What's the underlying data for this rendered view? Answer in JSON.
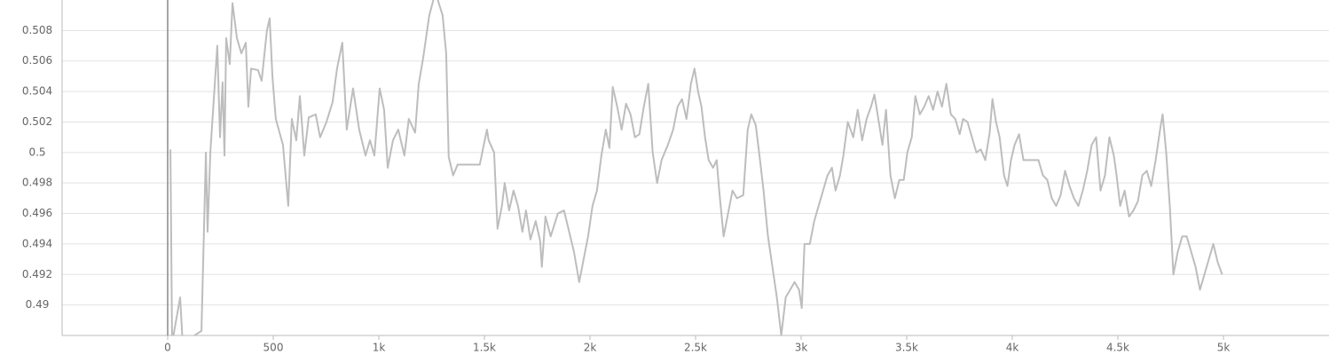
{
  "chart_data": {
    "type": "line",
    "x": [
      13,
      21,
      59,
      71,
      160,
      181,
      189,
      202,
      218,
      235,
      248,
      260,
      269,
      277,
      294,
      307,
      328,
      349,
      370,
      382,
      395,
      428,
      445,
      470,
      483,
      496,
      512,
      546,
      571,
      588,
      609,
      626,
      647,
      668,
      701,
      722,
      752,
      781,
      802,
      827,
      848,
      878,
      907,
      937,
      958,
      979,
      1004,
      1025,
      1042,
      1067,
      1092,
      1121,
      1142,
      1172,
      1189,
      1210,
      1239,
      1268,
      1302,
      1319,
      1331,
      1352,
      1373,
      1478,
      1512,
      1520,
      1546,
      1562,
      1583,
      1596,
      1617,
      1638,
      1659,
      1680,
      1697,
      1718,
      1743,
      1764,
      1772,
      1789,
      1814,
      1848,
      1877,
      1898,
      1924,
      1949,
      1970,
      1991,
      2012,
      2033,
      2054,
      2075,
      2092,
      2108,
      2129,
      2150,
      2171,
      2192,
      2213,
      2234,
      2255,
      2276,
      2297,
      2318,
      2339,
      2369,
      2394,
      2415,
      2436,
      2457,
      2478,
      2495,
      2512,
      2528,
      2545,
      2562,
      2583,
      2600,
      2612,
      2633,
      2654,
      2675,
      2696,
      2726,
      2747,
      2764,
      2785,
      2801,
      2822,
      2843,
      2864,
      2885,
      2906,
      2927,
      2948,
      2969,
      2990,
      3003,
      3016,
      3041,
      3062,
      3083,
      3104,
      3125,
      3146,
      3163,
      3184,
      3200,
      3221,
      3247,
      3268,
      3289,
      3310,
      3331,
      3347,
      3368,
      3385,
      3402,
      3423,
      3444,
      3465,
      3486,
      3503,
      3524,
      3541,
      3562,
      3583,
      3604,
      3625,
      3646,
      3667,
      3688,
      3709,
      3730,
      3751,
      3767,
      3788,
      3809,
      3830,
      3851,
      3872,
      3893,
      3906,
      3923,
      3940,
      3961,
      3977,
      3994,
      4011,
      4032,
      4053,
      4082,
      4124,
      4145,
      4166,
      4187,
      4208,
      4229,
      4250,
      4271,
      4292,
      4313,
      4334,
      4355,
      4376,
      4397,
      4418,
      4439,
      4460,
      4481,
      4494,
      4511,
      4532,
      4553,
      4574,
      4595,
      4616,
      4637,
      4658,
      4679,
      4700,
      4712,
      4729,
      4746,
      4763,
      4784,
      4805,
      4826,
      4847,
      4868,
      4889,
      4910,
      4931,
      4952,
      4973,
      4994
    ],
    "series": [
      {
        "color": "#bdbdbd",
        "values": [
          0.5002,
          0.4875,
          0.4905,
          0.4875,
          0.4883,
          0.5,
          0.4948,
          0.5,
          0.5034,
          0.507,
          0.501,
          0.5046,
          0.4998,
          0.5075,
          0.5058,
          0.5098,
          0.5075,
          0.5065,
          0.5072,
          0.503,
          0.5055,
          0.5054,
          0.5047,
          0.508,
          0.5088,
          0.505,
          0.5022,
          0.5005,
          0.4965,
          0.5022,
          0.5008,
          0.5037,
          0.4998,
          0.5023,
          0.5025,
          0.501,
          0.502,
          0.5033,
          0.5055,
          0.5072,
          0.5015,
          0.5042,
          0.5015,
          0.4998,
          0.5008,
          0.4998,
          0.5042,
          0.5028,
          0.499,
          0.5008,
          0.5015,
          0.4998,
          0.5022,
          0.5013,
          0.5045,
          0.5062,
          0.509,
          0.5105,
          0.509,
          0.5065,
          0.4997,
          0.4985,
          0.4992,
          0.4992,
          0.5015,
          0.5008,
          0.5,
          0.495,
          0.4965,
          0.498,
          0.4962,
          0.4975,
          0.4965,
          0.4948,
          0.4962,
          0.4943,
          0.4955,
          0.4942,
          0.4925,
          0.4958,
          0.4945,
          0.496,
          0.4962,
          0.495,
          0.4935,
          0.4915,
          0.493,
          0.4945,
          0.4965,
          0.4975,
          0.4998,
          0.5015,
          0.5003,
          0.5043,
          0.503,
          0.5015,
          0.5032,
          0.5025,
          0.501,
          0.5012,
          0.503,
          0.5045,
          0.5,
          0.498,
          0.4995,
          0.5005,
          0.5015,
          0.503,
          0.5035,
          0.5022,
          0.5045,
          0.5055,
          0.504,
          0.503,
          0.501,
          0.4995,
          0.499,
          0.4995,
          0.4975,
          0.4945,
          0.496,
          0.4975,
          0.497,
          0.4972,
          0.5015,
          0.5025,
          0.5018,
          0.5,
          0.4975,
          0.4945,
          0.4925,
          0.4905,
          0.488,
          0.4905,
          0.491,
          0.4915,
          0.491,
          0.4898,
          0.494,
          0.494,
          0.4955,
          0.4965,
          0.4975,
          0.4985,
          0.499,
          0.4975,
          0.4985,
          0.4998,
          0.502,
          0.501,
          0.5028,
          0.5008,
          0.5022,
          0.503,
          0.5038,
          0.502,
          0.5005,
          0.5028,
          0.4985,
          0.497,
          0.4982,
          0.4982,
          0.5,
          0.501,
          0.5037,
          0.5025,
          0.503,
          0.5037,
          0.5028,
          0.504,
          0.503,
          0.5045,
          0.5025,
          0.5022,
          0.5012,
          0.5022,
          0.502,
          0.501,
          0.5,
          0.5002,
          0.4995,
          0.5013,
          0.5035,
          0.502,
          0.501,
          0.4985,
          0.4978,
          0.4995,
          0.5005,
          0.5012,
          0.4995,
          0.4995,
          0.4995,
          0.4985,
          0.4982,
          0.497,
          0.4965,
          0.4972,
          0.4988,
          0.4978,
          0.497,
          0.4965,
          0.4975,
          0.4988,
          0.5005,
          0.501,
          0.4975,
          0.4985,
          0.501,
          0.4998,
          0.4985,
          0.4965,
          0.4975,
          0.4958,
          0.4962,
          0.4968,
          0.4985,
          0.4988,
          0.4978,
          0.4995,
          0.5015,
          0.5025,
          0.5,
          0.4965,
          0.492,
          0.4935,
          0.4945,
          0.4945,
          0.4935,
          0.4925,
          0.491,
          0.492,
          0.493,
          0.494,
          0.4928,
          0.492
        ]
      }
    ],
    "xlim": [
      -500,
      5500
    ],
    "ylim": [
      0.488,
      0.51
    ],
    "xticks": [
      0,
      500,
      {
        "value": 1000,
        "label": "1k"
      },
      {
        "value": 1500,
        "label": "1.5k"
      },
      {
        "value": 2000,
        "label": "2k"
      },
      {
        "value": 2500,
        "label": "2.5k"
      },
      {
        "value": 3000,
        "label": "3k"
      },
      {
        "value": 3500,
        "label": "3.5k"
      },
      {
        "value": 4000,
        "label": "4k"
      },
      {
        "value": 4500,
        "label": "4.5k"
      },
      {
        "value": 5000,
        "label": "5k"
      }
    ],
    "yticks": [
      0.49,
      0.492,
      0.494,
      0.496,
      0.498,
      0.5,
      0.502,
      0.504,
      0.506,
      0.508
    ],
    "grid": true
  }
}
